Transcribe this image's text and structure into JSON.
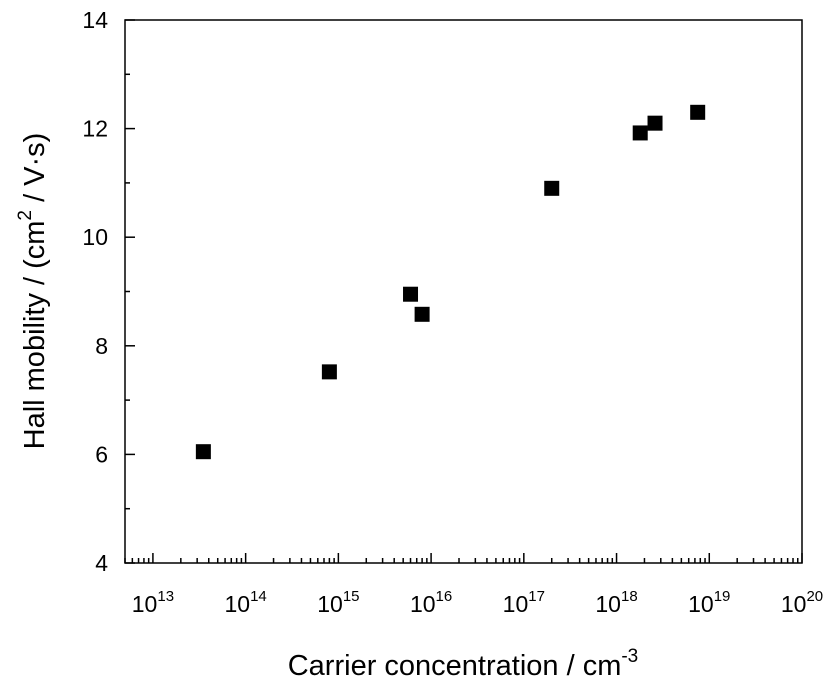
{
  "chart_data": {
    "type": "scatter",
    "xlabel": {
      "text": "Carrier concentration / cm",
      "sup": "-3"
    },
    "ylabel": {
      "pre": "Hall mobility / (cm",
      "sup": "2",
      "post": " / V·s)"
    },
    "xscale": "log",
    "xlim": [
      5000000000000.0,
      1e+20
    ],
    "ylim": [
      4,
      14
    ],
    "x_tick_base": "10",
    "x_tick_exponents": [
      "13",
      "14",
      "15",
      "16",
      "17",
      "18",
      "19",
      "20"
    ],
    "y_ticks": [
      "4",
      "6",
      "8",
      "10",
      "12",
      "14"
    ],
    "grid": false,
    "legend": "none",
    "marker": "square",
    "marker_color": "#000000",
    "points": [
      {
        "x": 35000000000000.0,
        "y": 6.05
      },
      {
        "x": 800000000000000.0,
        "y": 7.52
      },
      {
        "x": 6000000000000000.0,
        "y": 8.95
      },
      {
        "x": 8000000000000000.0,
        "y": 8.58
      },
      {
        "x": 2e+17,
        "y": 10.9
      },
      {
        "x": 1.8e+18,
        "y": 11.92
      },
      {
        "x": 2.6e+18,
        "y": 12.1
      },
      {
        "x": 7.5e+18,
        "y": 12.3
      }
    ]
  }
}
